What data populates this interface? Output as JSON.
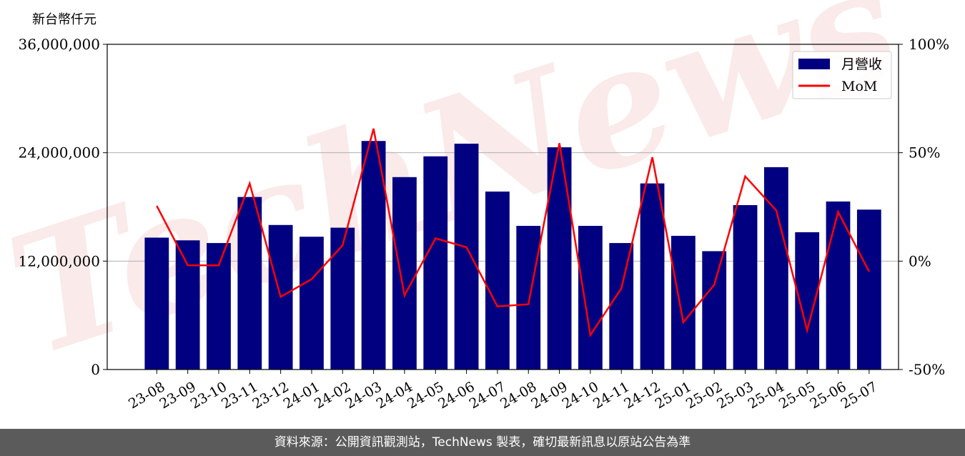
{
  "unit_label": "新台幣仟元",
  "footer": "資料來源：公開資訊觀測站，TechNews 製表，確切最新訊息以原站公告為準",
  "watermark": "TechNews",
  "colors": {
    "bar": "#000080",
    "line": "#ff0000",
    "grid": "#b0b0b0",
    "footer_bg": "#5b5b5b"
  },
  "chart_data": {
    "type": "bar",
    "categories": [
      "23-08",
      "23-09",
      "23-10",
      "23-11",
      "23-12",
      "24-01",
      "24-02",
      "24-03",
      "24-04",
      "24-05",
      "24-06",
      "24-07",
      "24-08",
      "24-09",
      "24-10",
      "24-11",
      "24-12",
      "25-01",
      "25-02",
      "25-03",
      "25-04",
      "25-05",
      "25-06",
      "25-07"
    ],
    "series": [
      {
        "name": "月營收",
        "type": "bar",
        "axis": "left",
        "values": [
          14600000,
          14300000,
          14000000,
          19100000,
          16000000,
          14700000,
          15700000,
          25300000,
          21300000,
          23600000,
          25000000,
          19700000,
          15900000,
          24600000,
          15900000,
          14000000,
          20600000,
          14800000,
          13100000,
          18200000,
          22400000,
          15200000,
          18600000,
          17700000
        ]
      },
      {
        "name": "MoM",
        "type": "line",
        "axis": "right",
        "values": [
          25.5,
          -1.9,
          -2.0,
          35.8,
          -16.5,
          -8.3,
          7.3,
          61.1,
          -15.8,
          10.5,
          6.4,
          -20.9,
          -19.9,
          54.4,
          -34.1,
          -12.6,
          47.9,
          -28.2,
          -10.9,
          39.1,
          23.4,
          -31.9,
          22.7,
          -4.8
        ]
      }
    ],
    "y_left": {
      "min": 0,
      "max": 36000000,
      "ticks": [
        0,
        12000000,
        24000000,
        36000000
      ],
      "tick_labels": [
        "0",
        "12,000,000",
        "24,000,000",
        "36,000,000"
      ]
    },
    "y_right": {
      "min": -50,
      "max": 100,
      "ticks": [
        -50,
        0,
        50,
        100
      ],
      "tick_labels": [
        "-50%",
        "0%",
        "50%",
        "100%"
      ]
    },
    "grid": true,
    "legend": "top-right"
  }
}
